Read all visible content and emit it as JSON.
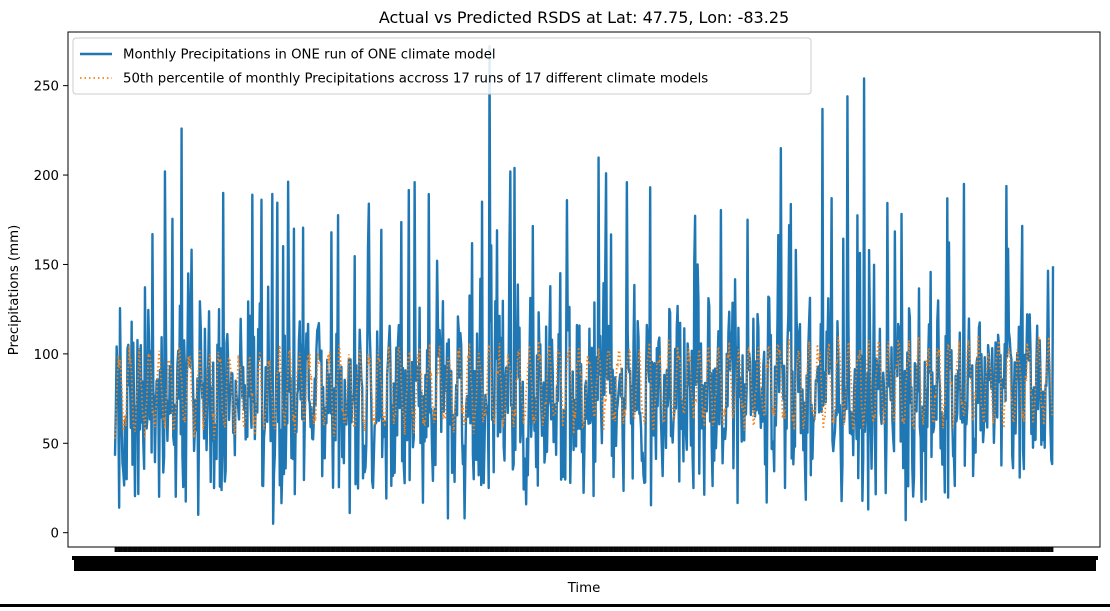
{
  "chart_data": {
    "type": "line",
    "title": "Actual vs Predicted RSDS at Lat: 47.75, Lon: -83.25",
    "xlabel": "Time",
    "ylabel": "Precipitations (mm)",
    "ylim": [
      -8,
      280
    ],
    "yticks": [
      0,
      50,
      100,
      150,
      200,
      250
    ],
    "x_tick_labels_overlapping": true,
    "n_months": 1128,
    "grid": false,
    "legend_position": "top-left",
    "series": [
      {
        "name": "Monthly Precipitations in ONE run of ONE climate model",
        "color": "#1f77b4",
        "style": "solid",
        "values_range": [
          5,
          272
        ],
        "peaks": [
          {
            "index": 0,
            "value": 43
          },
          {
            "index": 5,
            "value": 14
          },
          {
            "index": 20,
            "value": 118
          },
          {
            "index": 45,
            "value": 167
          },
          {
            "index": 60,
            "value": 202
          },
          {
            "index": 80,
            "value": 226
          },
          {
            "index": 88,
            "value": 145
          },
          {
            "index": 100,
            "value": 10
          },
          {
            "index": 130,
            "value": 190
          },
          {
            "index": 165,
            "value": 189
          },
          {
            "index": 190,
            "value": 5
          },
          {
            "index": 215,
            "value": 170
          },
          {
            "index": 260,
            "value": 168
          },
          {
            "index": 282,
            "value": 11
          },
          {
            "index": 305,
            "value": 184
          },
          {
            "index": 360,
            "value": 196
          },
          {
            "index": 400,
            "value": 8
          },
          {
            "index": 420,
            "value": 8
          },
          {
            "index": 450,
            "value": 272
          },
          {
            "index": 475,
            "value": 202
          },
          {
            "index": 480,
            "value": 204
          },
          {
            "index": 590,
            "value": 201
          },
          {
            "index": 615,
            "value": 196
          },
          {
            "index": 700,
            "value": 150
          },
          {
            "index": 760,
            "value": 175
          },
          {
            "index": 800,
            "value": 215
          },
          {
            "index": 850,
            "value": 237
          },
          {
            "index": 880,
            "value": 244
          },
          {
            "index": 900,
            "value": 254
          },
          {
            "index": 905,
            "value": 13
          },
          {
            "index": 950,
            "value": 7
          },
          {
            "index": 1000,
            "value": 187
          },
          {
            "index": 1020,
            "value": 195
          },
          {
            "index": 1127,
            "value": 149
          }
        ],
        "baseline_mean": 72
      },
      {
        "name": "50th percentile of monthly Precipitations accross 17 runs of 17 different climate models",
        "color": "#ff7f0e",
        "style": "dotted",
        "values_range": [
          40,
          120
        ],
        "seasonal_mean": 78,
        "seasonal_amplitude": 20,
        "trend_per_month": 0.006
      }
    ]
  }
}
